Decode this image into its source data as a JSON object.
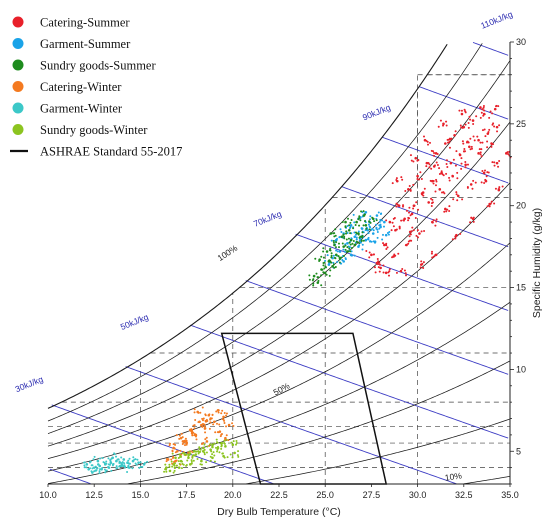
{
  "chart_data": {
    "type": "scatter",
    "title": "",
    "xlabel": "Dry Bulb Temperature (°C)",
    "ylabel": "Specific Humidity (g/kg)",
    "xlim": [
      10,
      35
    ],
    "ylim": [
      3,
      30
    ],
    "x_ticks": [
      "10.0",
      "12.5",
      "15.0",
      "17.5",
      "20.0",
      "22.5",
      "25.0",
      "27.5",
      "30.0",
      "32.5",
      "35.0"
    ],
    "y_ticks": [
      "5",
      "10",
      "15",
      "20",
      "25",
      "30"
    ],
    "grid": false,
    "legend_position": "top-left",
    "series": [
      {
        "name": "Catering-Summer",
        "color": "#e8202a",
        "points": [
          [
            27.5,
            17.0
          ],
          [
            28.2,
            17.6
          ],
          [
            28.8,
            18.5
          ],
          [
            29.3,
            19.2
          ],
          [
            29.8,
            20.0
          ],
          [
            30.3,
            20.8
          ],
          [
            30.8,
            21.5
          ],
          [
            31.3,
            22.0
          ],
          [
            31.8,
            22.6
          ],
          [
            32.3,
            23.1
          ],
          [
            32.8,
            23.6
          ],
          [
            33.3,
            24.0
          ],
          [
            33.8,
            24.4
          ],
          [
            34.3,
            24.8
          ],
          [
            28.5,
            19.0
          ],
          [
            29.0,
            20.0
          ],
          [
            29.5,
            21.0
          ],
          [
            30.0,
            21.8
          ],
          [
            30.5,
            22.6
          ],
          [
            31.0,
            23.2
          ],
          [
            31.5,
            23.8
          ],
          [
            32.0,
            24.3
          ],
          [
            32.5,
            24.8
          ],
          [
            33.0,
            25.2
          ],
          [
            33.6,
            25.6
          ],
          [
            28.0,
            16.2
          ],
          [
            28.7,
            16.9
          ],
          [
            29.4,
            17.6
          ],
          [
            30.1,
            18.3
          ],
          [
            30.8,
            19.0
          ],
          [
            31.5,
            19.8
          ],
          [
            32.2,
            20.6
          ],
          [
            32.9,
            21.3
          ],
          [
            33.6,
            22.0
          ],
          [
            34.3,
            22.6
          ],
          [
            34.8,
            23.2
          ],
          [
            30.6,
            20.2
          ],
          [
            31.2,
            21.0
          ],
          [
            31.9,
            21.8
          ],
          [
            32.6,
            22.5
          ],
          [
            33.3,
            23.2
          ],
          [
            34.0,
            23.8
          ],
          [
            29.7,
            19.5
          ],
          [
            30.4,
            24.0
          ],
          [
            31.4,
            25.0
          ],
          [
            32.4,
            25.6
          ],
          [
            33.4,
            26.0
          ],
          [
            34.2,
            25.9
          ],
          [
            34.4,
            21.0
          ],
          [
            33.9,
            20.1
          ],
          [
            33.0,
            19.2
          ],
          [
            32.1,
            18.2
          ],
          [
            31.0,
            17.0
          ],
          [
            30.2,
            16.4
          ],
          [
            29.1,
            16.0
          ],
          [
            28.3,
            15.9
          ],
          [
            27.8,
            16.5
          ],
          [
            29.6,
            18.4
          ],
          [
            30.9,
            22.4
          ],
          [
            32.7,
            23.9
          ],
          [
            33.7,
            21.5
          ],
          [
            28.9,
            21.5
          ],
          [
            29.9,
            22.9
          ]
        ]
      },
      {
        "name": "Garment-Summer",
        "color": "#1aa3e8",
        "points": [
          [
            25.4,
            16.8
          ],
          [
            25.8,
            17.2
          ],
          [
            26.2,
            17.7
          ],
          [
            26.6,
            18.1
          ],
          [
            27.0,
            18.6
          ],
          [
            27.4,
            19.0
          ],
          [
            27.8,
            19.4
          ],
          [
            28.2,
            19.0
          ],
          [
            26.0,
            16.6
          ],
          [
            26.4,
            17.0
          ],
          [
            26.8,
            17.5
          ],
          [
            27.2,
            17.9
          ],
          [
            27.6,
            18.3
          ],
          [
            28.0,
            18.7
          ],
          [
            25.6,
            17.9
          ],
          [
            26.0,
            18.3
          ],
          [
            26.4,
            18.8
          ],
          [
            26.8,
            19.2
          ],
          [
            27.2,
            19.6
          ],
          [
            25.2,
            16.4
          ],
          [
            26.9,
            18.0
          ],
          [
            27.3,
            18.5
          ],
          [
            27.7,
            17.8
          ],
          [
            28.3,
            18.2
          ]
        ]
      },
      {
        "name": "Sundry goods-Summer",
        "color": "#1e8c1e",
        "points": [
          [
            24.4,
            15.7
          ],
          [
            24.8,
            16.1
          ],
          [
            25.2,
            16.6
          ],
          [
            25.6,
            17.0
          ],
          [
            26.0,
            17.5
          ],
          [
            26.4,
            17.9
          ],
          [
            26.8,
            18.3
          ],
          [
            27.2,
            18.8
          ],
          [
            27.6,
            19.2
          ],
          [
            24.7,
            16.7
          ],
          [
            25.1,
            17.2
          ],
          [
            25.5,
            17.6
          ],
          [
            25.9,
            18.1
          ],
          [
            26.3,
            18.5
          ],
          [
            26.7,
            19.0
          ],
          [
            27.1,
            19.4
          ],
          [
            25.0,
            15.9
          ],
          [
            25.4,
            16.3
          ],
          [
            25.8,
            16.8
          ],
          [
            26.2,
            17.2
          ],
          [
            26.6,
            17.6
          ],
          [
            27.0,
            18.1
          ],
          [
            24.6,
            15.3
          ],
          [
            25.3,
            18.3
          ],
          [
            26.1,
            19.0
          ]
        ]
      },
      {
        "name": "Catering-Winter",
        "color": "#f47a20",
        "points": [
          [
            16.5,
            4.5
          ],
          [
            17.0,
            5.0
          ],
          [
            17.5,
            5.5
          ],
          [
            18.0,
            6.0
          ],
          [
            18.5,
            6.4
          ],
          [
            19.0,
            6.8
          ],
          [
            19.5,
            7.1
          ],
          [
            17.2,
            5.8
          ],
          [
            17.7,
            6.3
          ],
          [
            18.2,
            6.8
          ],
          [
            18.7,
            7.2
          ],
          [
            19.2,
            7.5
          ],
          [
            16.8,
            5.2
          ],
          [
            17.3,
            5.6
          ],
          [
            17.8,
            6.1
          ],
          [
            18.3,
            6.6
          ],
          [
            18.8,
            7.0
          ],
          [
            19.3,
            6.2
          ],
          [
            19.8,
            6.6
          ],
          [
            18.1,
            7.4
          ],
          [
            17.6,
            4.9
          ],
          [
            18.6,
            5.6
          ],
          [
            19.6,
            5.8
          ],
          [
            16.9,
            4.4
          ]
        ]
      },
      {
        "name": "Garment-Winter",
        "color": "#3cc8c8",
        "points": [
          [
            12.2,
            3.9
          ],
          [
            12.5,
            4.0
          ],
          [
            12.8,
            4.1
          ],
          [
            13.1,
            4.2
          ],
          [
            13.4,
            4.3
          ],
          [
            13.7,
            4.4
          ],
          [
            14.0,
            4.2
          ],
          [
            14.3,
            4.3
          ],
          [
            14.6,
            4.4
          ],
          [
            14.9,
            4.3
          ],
          [
            15.2,
            4.2
          ],
          [
            12.4,
            3.7
          ],
          [
            12.9,
            3.9
          ],
          [
            13.3,
            4.0
          ],
          [
            13.9,
            4.1
          ],
          [
            14.4,
            4.0
          ],
          [
            12.1,
            4.2
          ],
          [
            12.7,
            4.4
          ],
          [
            13.5,
            4.6
          ],
          [
            14.1,
            4.5
          ]
        ]
      },
      {
        "name": "Sundry goods-Winter",
        "color": "#8cc420",
        "points": [
          [
            16.4,
            4.0
          ],
          [
            16.8,
            4.2
          ],
          [
            17.2,
            4.4
          ],
          [
            17.6,
            4.6
          ],
          [
            18.0,
            4.8
          ],
          [
            18.4,
            5.0
          ],
          [
            18.8,
            5.1
          ],
          [
            19.2,
            5.2
          ],
          [
            19.6,
            5.3
          ],
          [
            20.0,
            5.4
          ],
          [
            16.9,
            4.6
          ],
          [
            17.4,
            4.8
          ],
          [
            17.9,
            5.0
          ],
          [
            18.4,
            5.2
          ],
          [
            18.9,
            5.4
          ],
          [
            19.4,
            5.5
          ],
          [
            16.6,
            3.8
          ],
          [
            17.1,
            4.0
          ],
          [
            17.7,
            4.2
          ],
          [
            18.3,
            4.4
          ],
          [
            18.9,
            4.6
          ],
          [
            19.5,
            4.7
          ],
          [
            20.1,
            4.9
          ]
        ]
      }
    ],
    "standard": {
      "name": "ASHRAE Standard 55-2017",
      "color": "#111111",
      "polygon": [
        [
          19.4,
          12.2
        ],
        [
          26.5,
          12.2
        ],
        [
          28.3,
          3.0
        ],
        [
          21.5,
          3.0
        ]
      ]
    },
    "enthalpy_lines": [
      {
        "label": "30kJ/kg",
        "value": 30
      },
      {
        "label": "50kJ/kg",
        "value": 50
      },
      {
        "label": "70kJ/kg",
        "value": 70
      },
      {
        "label": "90kJ/kg",
        "value": 90
      },
      {
        "label": "110kJ/kg",
        "value": 110
      }
    ],
    "rh_labels": [
      {
        "label": "100%",
        "rh": 100
      },
      {
        "label": "50%",
        "rh": 50
      },
      {
        "label": "10%",
        "rh": 10
      }
    ]
  }
}
